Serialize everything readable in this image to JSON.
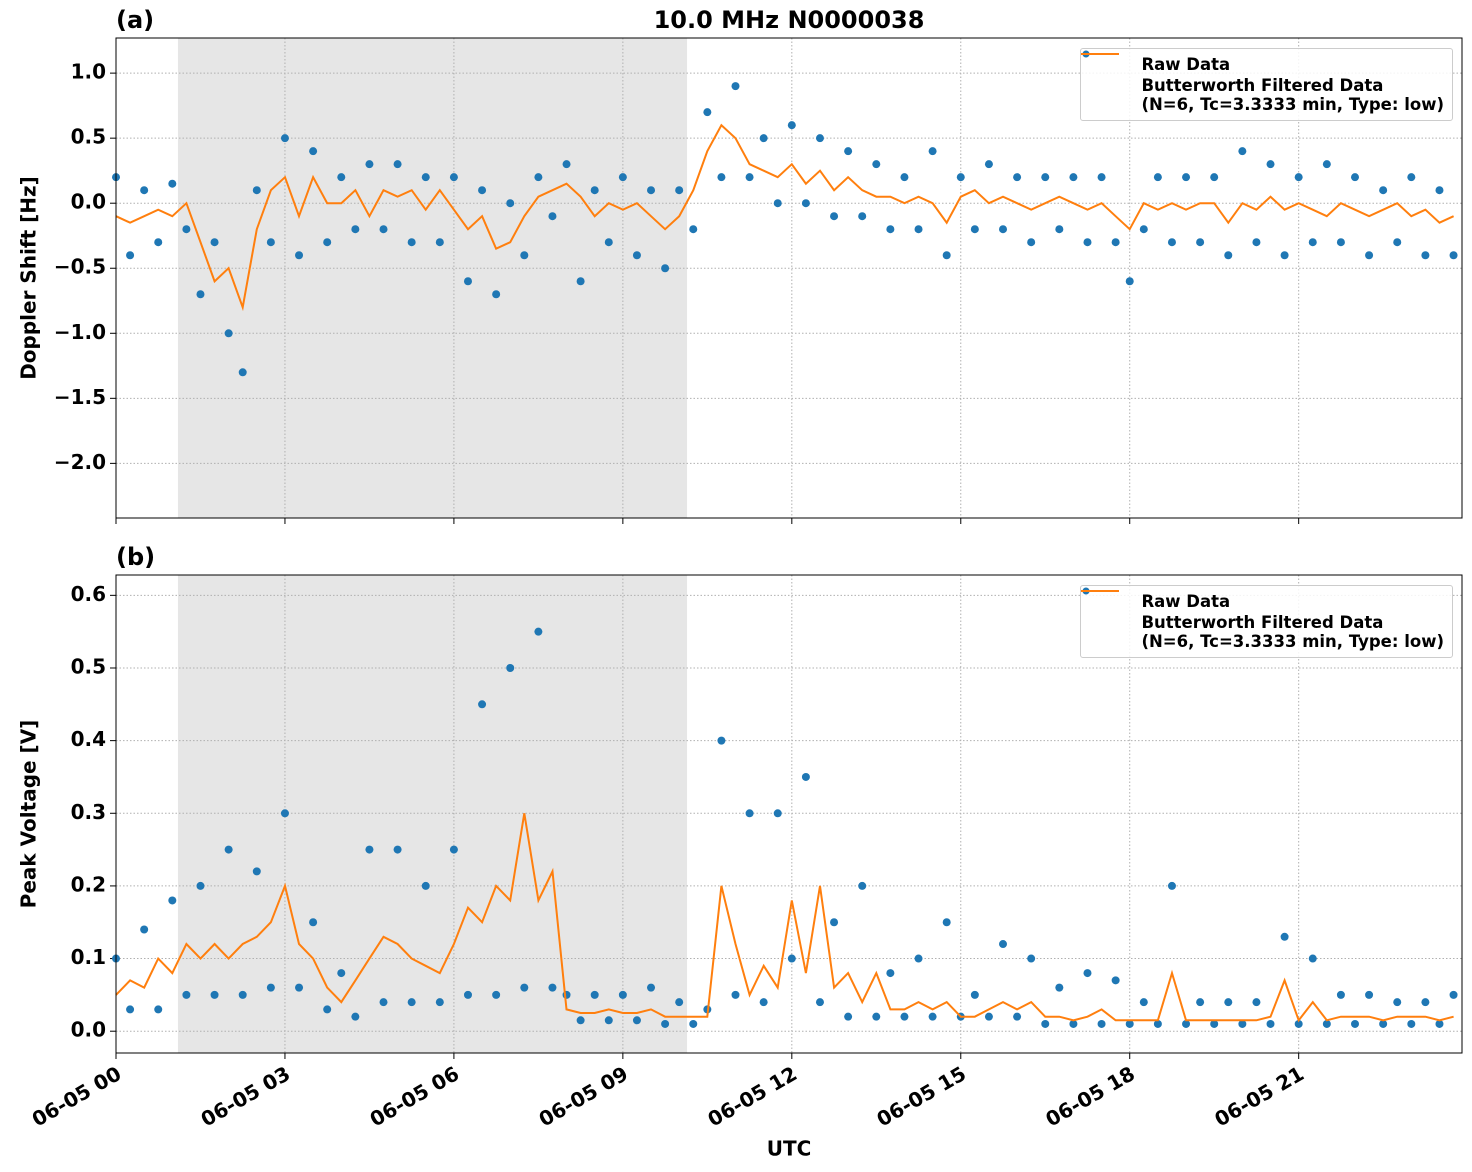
{
  "chart_data": [
    {
      "type": "scatter-line",
      "panel_label": "(a)",
      "title": "10.0 MHz N0000038",
      "ylabel": "Doppler Shift [Hz]",
      "xlim": [
        0,
        23.9
      ],
      "xticks": [
        0,
        3,
        6,
        9,
        12,
        15,
        18,
        21
      ],
      "ylim": [
        -2.42,
        1.27
      ],
      "yticks": [
        {
          "value": -2.0,
          "label": "−2.0"
        },
        {
          "value": -1.5,
          "label": "−1.5"
        },
        {
          "value": -1.0,
          "label": "−1.0"
        },
        {
          "value": -0.5,
          "label": "−0.5"
        },
        {
          "value": 0,
          "label": "0.0"
        },
        {
          "value": 0.5,
          "label": "0.5"
        },
        {
          "value": 1.0,
          "label": "1.0"
        }
      ],
      "grid": true,
      "legend": "upper right",
      "shaded_span": [
        1.1,
        10.14
      ],
      "x": [
        0,
        0.25,
        0.5,
        0.75,
        1,
        1.25,
        1.5,
        1.75,
        2,
        2.25,
        2.5,
        2.75,
        3,
        3.25,
        3.5,
        3.75,
        4,
        4.25,
        4.5,
        4.75,
        5,
        5.25,
        5.5,
        5.75,
        6,
        6.25,
        6.5,
        6.75,
        7,
        7.25,
        7.5,
        7.75,
        8,
        8.25,
        8.5,
        8.75,
        9,
        9.25,
        9.5,
        9.75,
        10,
        10.25,
        10.5,
        10.75,
        11,
        11.25,
        11.5,
        11.75,
        12,
        12.25,
        12.5,
        12.75,
        13,
        13.25,
        13.5,
        13.75,
        14,
        14.25,
        14.5,
        14.75,
        15,
        15.25,
        15.5,
        15.75,
        16,
        16.25,
        16.5,
        16.75,
        17,
        17.25,
        17.5,
        17.75,
        18,
        18.25,
        18.5,
        18.75,
        19,
        19.25,
        19.5,
        19.75,
        20,
        20.25,
        20.5,
        20.75,
        21,
        21.25,
        21.5,
        21.75,
        22,
        22.25,
        22.5,
        22.75,
        23,
        23.25,
        23.5,
        23.75
      ],
      "series": [
        {
          "name": "Raw Data",
          "kind": "points",
          "color": "#1f77b4",
          "values": [
            0.2,
            -0.4,
            0.1,
            -0.3,
            0.15,
            -0.2,
            -0.7,
            -0.3,
            -1.0,
            -1.3,
            0.1,
            -0.3,
            0.5,
            -0.4,
            0.4,
            -0.3,
            0.2,
            -0.2,
            0.3,
            -0.2,
            0.3,
            -0.3,
            0.2,
            -0.3,
            0.2,
            -0.6,
            0.1,
            -0.7,
            0.0,
            -0.4,
            0.2,
            -0.1,
            0.3,
            -0.6,
            0.1,
            -0.3,
            0.2,
            -0.4,
            0.1,
            -0.5,
            0.1,
            -0.2,
            0.7,
            0.2,
            0.9,
            0.2,
            0.5,
            0.0,
            0.6,
            0.0,
            0.5,
            -0.1,
            0.4,
            -0.1,
            0.3,
            -0.2,
            0.2,
            -0.2,
            0.4,
            -0.4,
            0.2,
            -0.2,
            0.3,
            -0.2,
            0.2,
            -0.3,
            0.2,
            -0.2,
            0.2,
            -0.3,
            0.2,
            -0.3,
            -0.6,
            -0.2,
            0.2,
            -0.3,
            0.2,
            -0.3,
            0.2,
            -0.4,
            0.4,
            -0.3,
            0.3,
            -0.4,
            0.2,
            -0.3,
            0.3,
            -0.3,
            0.2,
            -0.4,
            0.1,
            -0.3,
            0.2,
            -0.4,
            0.1,
            -0.4
          ]
        },
        {
          "name": "Butterworth Filtered Data\n(N=6, Tc=3.3333 min, Type: low)",
          "kind": "line",
          "color": "#ff7f0e",
          "values": [
            -0.1,
            -0.15,
            -0.1,
            -0.05,
            -0.1,
            0.0,
            -0.3,
            -0.6,
            -0.5,
            -0.8,
            -0.2,
            0.1,
            0.2,
            -0.1,
            0.2,
            0.0,
            0.0,
            0.1,
            -0.1,
            0.1,
            0.05,
            0.1,
            -0.05,
            0.1,
            -0.05,
            -0.2,
            -0.1,
            -0.35,
            -0.3,
            -0.1,
            0.05,
            0.1,
            0.15,
            0.05,
            -0.1,
            0.0,
            -0.05,
            0.0,
            -0.1,
            -0.2,
            -0.1,
            0.1,
            0.4,
            0.6,
            0.5,
            0.3,
            0.25,
            0.2,
            0.3,
            0.15,
            0.25,
            0.1,
            0.2,
            0.1,
            0.05,
            0.05,
            0.0,
            0.05,
            0.0,
            -0.15,
            0.05,
            0.1,
            0.0,
            0.05,
            0.0,
            -0.05,
            0.0,
            0.05,
            0.0,
            -0.05,
            0.0,
            -0.1,
            -0.2,
            0.0,
            -0.05,
            0.0,
            -0.05,
            0.0,
            0.0,
            -0.15,
            0.0,
            -0.05,
            0.05,
            -0.05,
            0.0,
            -0.05,
            -0.1,
            0.0,
            -0.05,
            -0.1,
            -0.05,
            0.0,
            -0.1,
            -0.05,
            -0.15,
            -0.1
          ]
        }
      ]
    },
    {
      "type": "scatter-line",
      "panel_label": "(b)",
      "ylabel": "Peak Voltage [V]",
      "xlabel": "UTC",
      "xlim": [
        0,
        23.9
      ],
      "xticks": [
        {
          "value": 0,
          "label": "06-05 00"
        },
        {
          "value": 3,
          "label": "06-05 03"
        },
        {
          "value": 6,
          "label": "06-05 06"
        },
        {
          "value": 9,
          "label": "06-05 09"
        },
        {
          "value": 12,
          "label": "06-05 12"
        },
        {
          "value": 15,
          "label": "06-05 15"
        },
        {
          "value": 18,
          "label": "06-05 18"
        },
        {
          "value": 21,
          "label": "06-05 21"
        }
      ],
      "ylim": [
        -0.03,
        0.628
      ],
      "yticks": [
        {
          "value": 0,
          "label": "0.0"
        },
        0.1,
        0.2,
        0.3,
        0.4,
        0.5,
        0.6
      ],
      "grid": true,
      "legend": "upper right",
      "shaded_span": [
        1.1,
        10.14
      ],
      "x": [
        0,
        0.25,
        0.5,
        0.75,
        1,
        1.25,
        1.5,
        1.75,
        2,
        2.25,
        2.5,
        2.75,
        3,
        3.25,
        3.5,
        3.75,
        4,
        4.25,
        4.5,
        4.75,
        5,
        5.25,
        5.5,
        5.75,
        6,
        6.25,
        6.5,
        6.75,
        7,
        7.25,
        7.5,
        7.75,
        8,
        8.25,
        8.5,
        8.75,
        9,
        9.25,
        9.5,
        9.75,
        10,
        10.25,
        10.5,
        10.75,
        11,
        11.25,
        11.5,
        11.75,
        12,
        12.25,
        12.5,
        12.75,
        13,
        13.25,
        13.5,
        13.75,
        14,
        14.25,
        14.5,
        14.75,
        15,
        15.25,
        15.5,
        15.75,
        16,
        16.25,
        16.5,
        16.75,
        17,
        17.25,
        17.5,
        17.75,
        18,
        18.25,
        18.5,
        18.75,
        19,
        19.25,
        19.5,
        19.75,
        20,
        20.25,
        20.5,
        20.75,
        21,
        21.25,
        21.5,
        21.75,
        22,
        22.25,
        22.5,
        22.75,
        23,
        23.25,
        23.5,
        23.75
      ],
      "series": [
        {
          "name": "Raw Data",
          "kind": "points",
          "color": "#1f77b4",
          "values": [
            0.1,
            0.03,
            0.14,
            0.03,
            0.18,
            0.05,
            0.2,
            0.05,
            0.25,
            0.05,
            0.22,
            0.06,
            0.3,
            0.06,
            0.15,
            0.03,
            0.08,
            0.02,
            0.25,
            0.04,
            0.25,
            0.04,
            0.2,
            0.04,
            0.25,
            0.05,
            0.45,
            0.05,
            0.5,
            0.06,
            0.55,
            0.06,
            0.05,
            0.015,
            0.05,
            0.015,
            0.05,
            0.015,
            0.06,
            0.01,
            0.04,
            0.01,
            0.03,
            0.4,
            0.05,
            0.3,
            0.04,
            0.3,
            0.1,
            0.35,
            0.04,
            0.15,
            0.02,
            0.2,
            0.02,
            0.08,
            0.02,
            0.1,
            0.02,
            0.15,
            0.02,
            0.05,
            0.02,
            0.12,
            0.02,
            0.1,
            0.01,
            0.06,
            0.01,
            0.08,
            0.01,
            0.07,
            0.01,
            0.04,
            0.01,
            0.2,
            0.01,
            0.04,
            0.01,
            0.04,
            0.01,
            0.04,
            0.01,
            0.13,
            0.01,
            0.1,
            0.01,
            0.05,
            0.01,
            0.05,
            0.01,
            0.04,
            0.01,
            0.04,
            0.01,
            0.05
          ]
        },
        {
          "name": "Butterworth Filtered Data\n(N=6, Tc=3.3333 min, Type: low)",
          "kind": "line",
          "color": "#ff7f0e",
          "values": [
            0.05,
            0.07,
            0.06,
            0.1,
            0.08,
            0.12,
            0.1,
            0.12,
            0.1,
            0.12,
            0.13,
            0.15,
            0.2,
            0.12,
            0.1,
            0.06,
            0.04,
            0.07,
            0.1,
            0.13,
            0.12,
            0.1,
            0.09,
            0.08,
            0.12,
            0.17,
            0.15,
            0.2,
            0.18,
            0.3,
            0.18,
            0.22,
            0.03,
            0.025,
            0.025,
            0.03,
            0.025,
            0.025,
            0.03,
            0.02,
            0.02,
            0.02,
            0.02,
            0.2,
            0.12,
            0.05,
            0.09,
            0.06,
            0.18,
            0.08,
            0.2,
            0.06,
            0.08,
            0.04,
            0.08,
            0.03,
            0.03,
            0.04,
            0.03,
            0.04,
            0.02,
            0.02,
            0.03,
            0.04,
            0.03,
            0.04,
            0.02,
            0.02,
            0.015,
            0.02,
            0.03,
            0.015,
            0.015,
            0.015,
            0.015,
            0.08,
            0.015,
            0.015,
            0.015,
            0.015,
            0.015,
            0.015,
            0.02,
            0.07,
            0.015,
            0.04,
            0.015,
            0.02,
            0.02,
            0.02,
            0.015,
            0.02,
            0.02,
            0.02,
            0.015,
            0.02
          ]
        }
      ]
    }
  ]
}
